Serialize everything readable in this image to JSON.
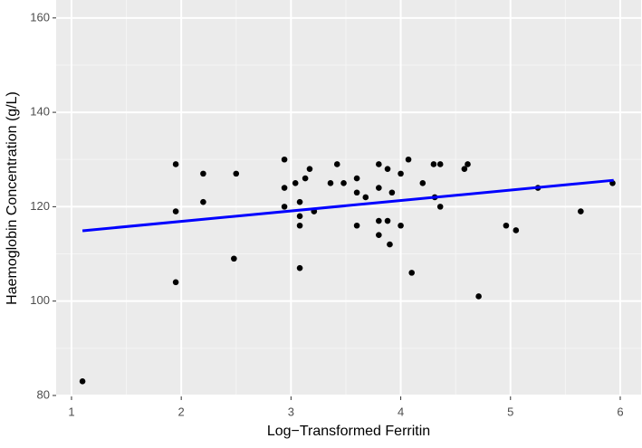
{
  "chart_data": {
    "type": "scatter",
    "x_label": "Log−Transformed Ferritin",
    "y_label": "Haemoglobin Concentration (g/L)",
    "x": [
      1.1,
      1.95,
      1.95,
      1.95,
      2.2,
      2.2,
      2.5,
      2.48,
      2.94,
      2.94,
      2.94,
      3.04,
      3.08,
      3.08,
      3.08,
      3.08,
      3.13,
      3.17,
      3.21,
      3.36,
      3.42,
      3.48,
      3.6,
      3.6,
      3.6,
      3.68,
      3.8,
      3.8,
      3.8,
      3.8,
      3.88,
      3.88,
      3.9,
      3.92,
      4.0,
      4.0,
      4.07,
      4.1,
      4.2,
      4.3,
      4.31,
      4.36,
      4.36,
      4.58,
      4.61,
      4.71,
      4.96,
      5.05,
      5.25,
      5.64,
      5.93
    ],
    "values": [
      83,
      129,
      119,
      104,
      127,
      121,
      127,
      109,
      130,
      124,
      120,
      125,
      121,
      118,
      116,
      107,
      126,
      128,
      119,
      125,
      129,
      125,
      123,
      126,
      116,
      122,
      129,
      124,
      117,
      114,
      128,
      117,
      112,
      123,
      127,
      116,
      130,
      106,
      125,
      129,
      122,
      129,
      120,
      128,
      129,
      101,
      116,
      115,
      124,
      119,
      125
    ],
    "color": "#000000",
    "fit": {
      "x": [
        1.1,
        5.94
      ],
      "values": [
        114.9,
        125.6
      ],
      "color": "#0000ff"
    },
    "xlim": [
      0.86,
      6.19
    ],
    "xticks": [
      1,
      2,
      3,
      4,
      5,
      6
    ],
    "ylim": [
      79.8,
      163.8
    ],
    "yticks": [
      80,
      100,
      120,
      140,
      160
    ],
    "grid": true
  }
}
